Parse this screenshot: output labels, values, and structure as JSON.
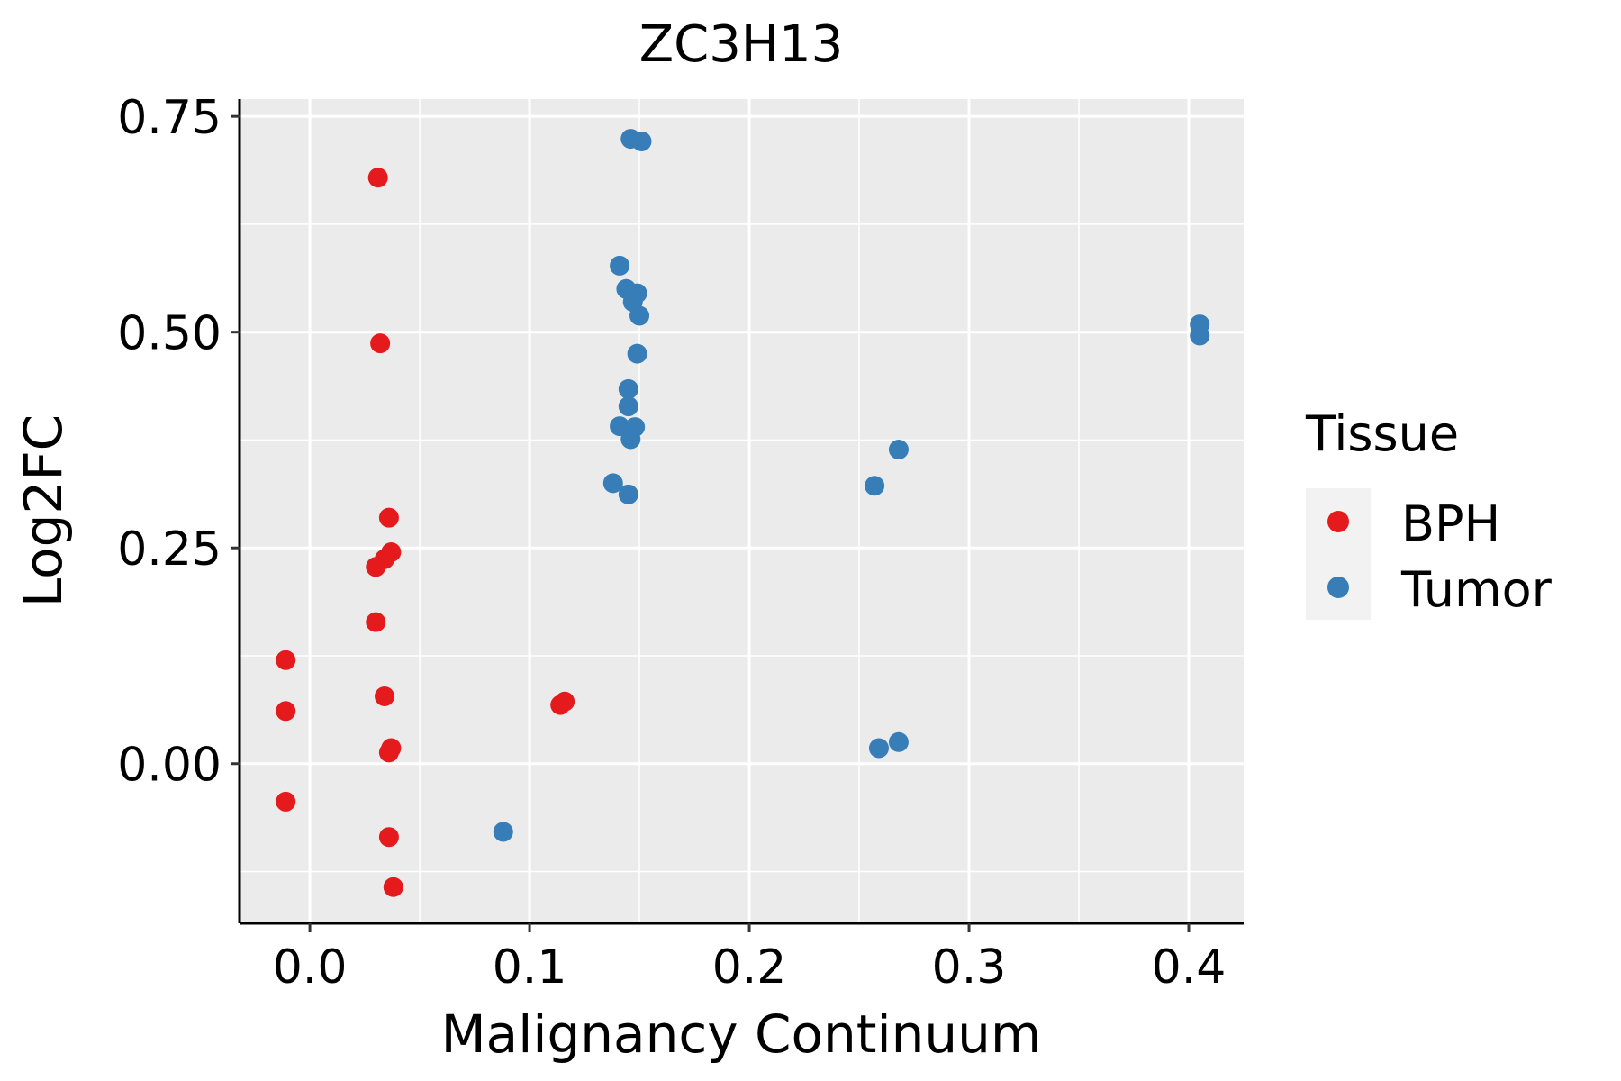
{
  "chart_data": {
    "type": "scatter",
    "title": "ZC3H13",
    "xlabel": "Malignancy Continuum",
    "ylabel": "Log2FC",
    "xlim": [
      -0.032,
      0.425
    ],
    "ylim": [
      -0.185,
      0.77
    ],
    "x_ticks": [
      0.0,
      0.1,
      0.2,
      0.3,
      0.4
    ],
    "x_tick_labels": [
      "0.0",
      "0.1",
      "0.2",
      "0.3",
      "0.4"
    ],
    "y_ticks": [
      0.0,
      0.25,
      0.5,
      0.75
    ],
    "y_tick_labels": [
      "0.00",
      "0.25",
      "0.50",
      "0.75"
    ],
    "grid": true,
    "background": "#EBEBEB",
    "legend": {
      "title": "Tissue",
      "position": "right",
      "entries": [
        {
          "name": "BPH",
          "color": "#E41A1C"
        },
        {
          "name": "Tumor",
          "color": "#377EB8"
        }
      ]
    },
    "series": [
      {
        "name": "BPH",
        "color": "#E41A1C",
        "points": [
          [
            0.031,
            0.679
          ],
          [
            0.032,
            0.487
          ],
          [
            0.036,
            0.285
          ],
          [
            0.037,
            0.245
          ],
          [
            0.034,
            0.237
          ],
          [
            0.03,
            0.228
          ],
          [
            0.03,
            0.164
          ],
          [
            -0.011,
            0.12
          ],
          [
            -0.011,
            0.061
          ],
          [
            0.034,
            0.078
          ],
          [
            0.037,
            0.018
          ],
          [
            0.036,
            0.013
          ],
          [
            -0.011,
            -0.044
          ],
          [
            0.036,
            -0.085
          ],
          [
            0.038,
            -0.143
          ],
          [
            0.114,
            0.068
          ],
          [
            0.116,
            0.072
          ]
        ]
      },
      {
        "name": "Tumor",
        "color": "#377EB8",
        "points": [
          [
            0.146,
            0.724
          ],
          [
            0.151,
            0.721
          ],
          [
            0.141,
            0.577
          ],
          [
            0.144,
            0.55
          ],
          [
            0.149,
            0.545
          ],
          [
            0.147,
            0.535
          ],
          [
            0.15,
            0.519
          ],
          [
            0.149,
            0.475
          ],
          [
            0.145,
            0.434
          ],
          [
            0.145,
            0.414
          ],
          [
            0.141,
            0.391
          ],
          [
            0.148,
            0.39
          ],
          [
            0.146,
            0.376
          ],
          [
            0.138,
            0.325
          ],
          [
            0.145,
            0.312
          ],
          [
            0.088,
            -0.079
          ],
          [
            0.257,
            0.322
          ],
          [
            0.268,
            0.364
          ],
          [
            0.259,
            0.018
          ],
          [
            0.268,
            0.025
          ],
          [
            0.405,
            0.509
          ],
          [
            0.405,
            0.496
          ]
        ]
      }
    ]
  }
}
